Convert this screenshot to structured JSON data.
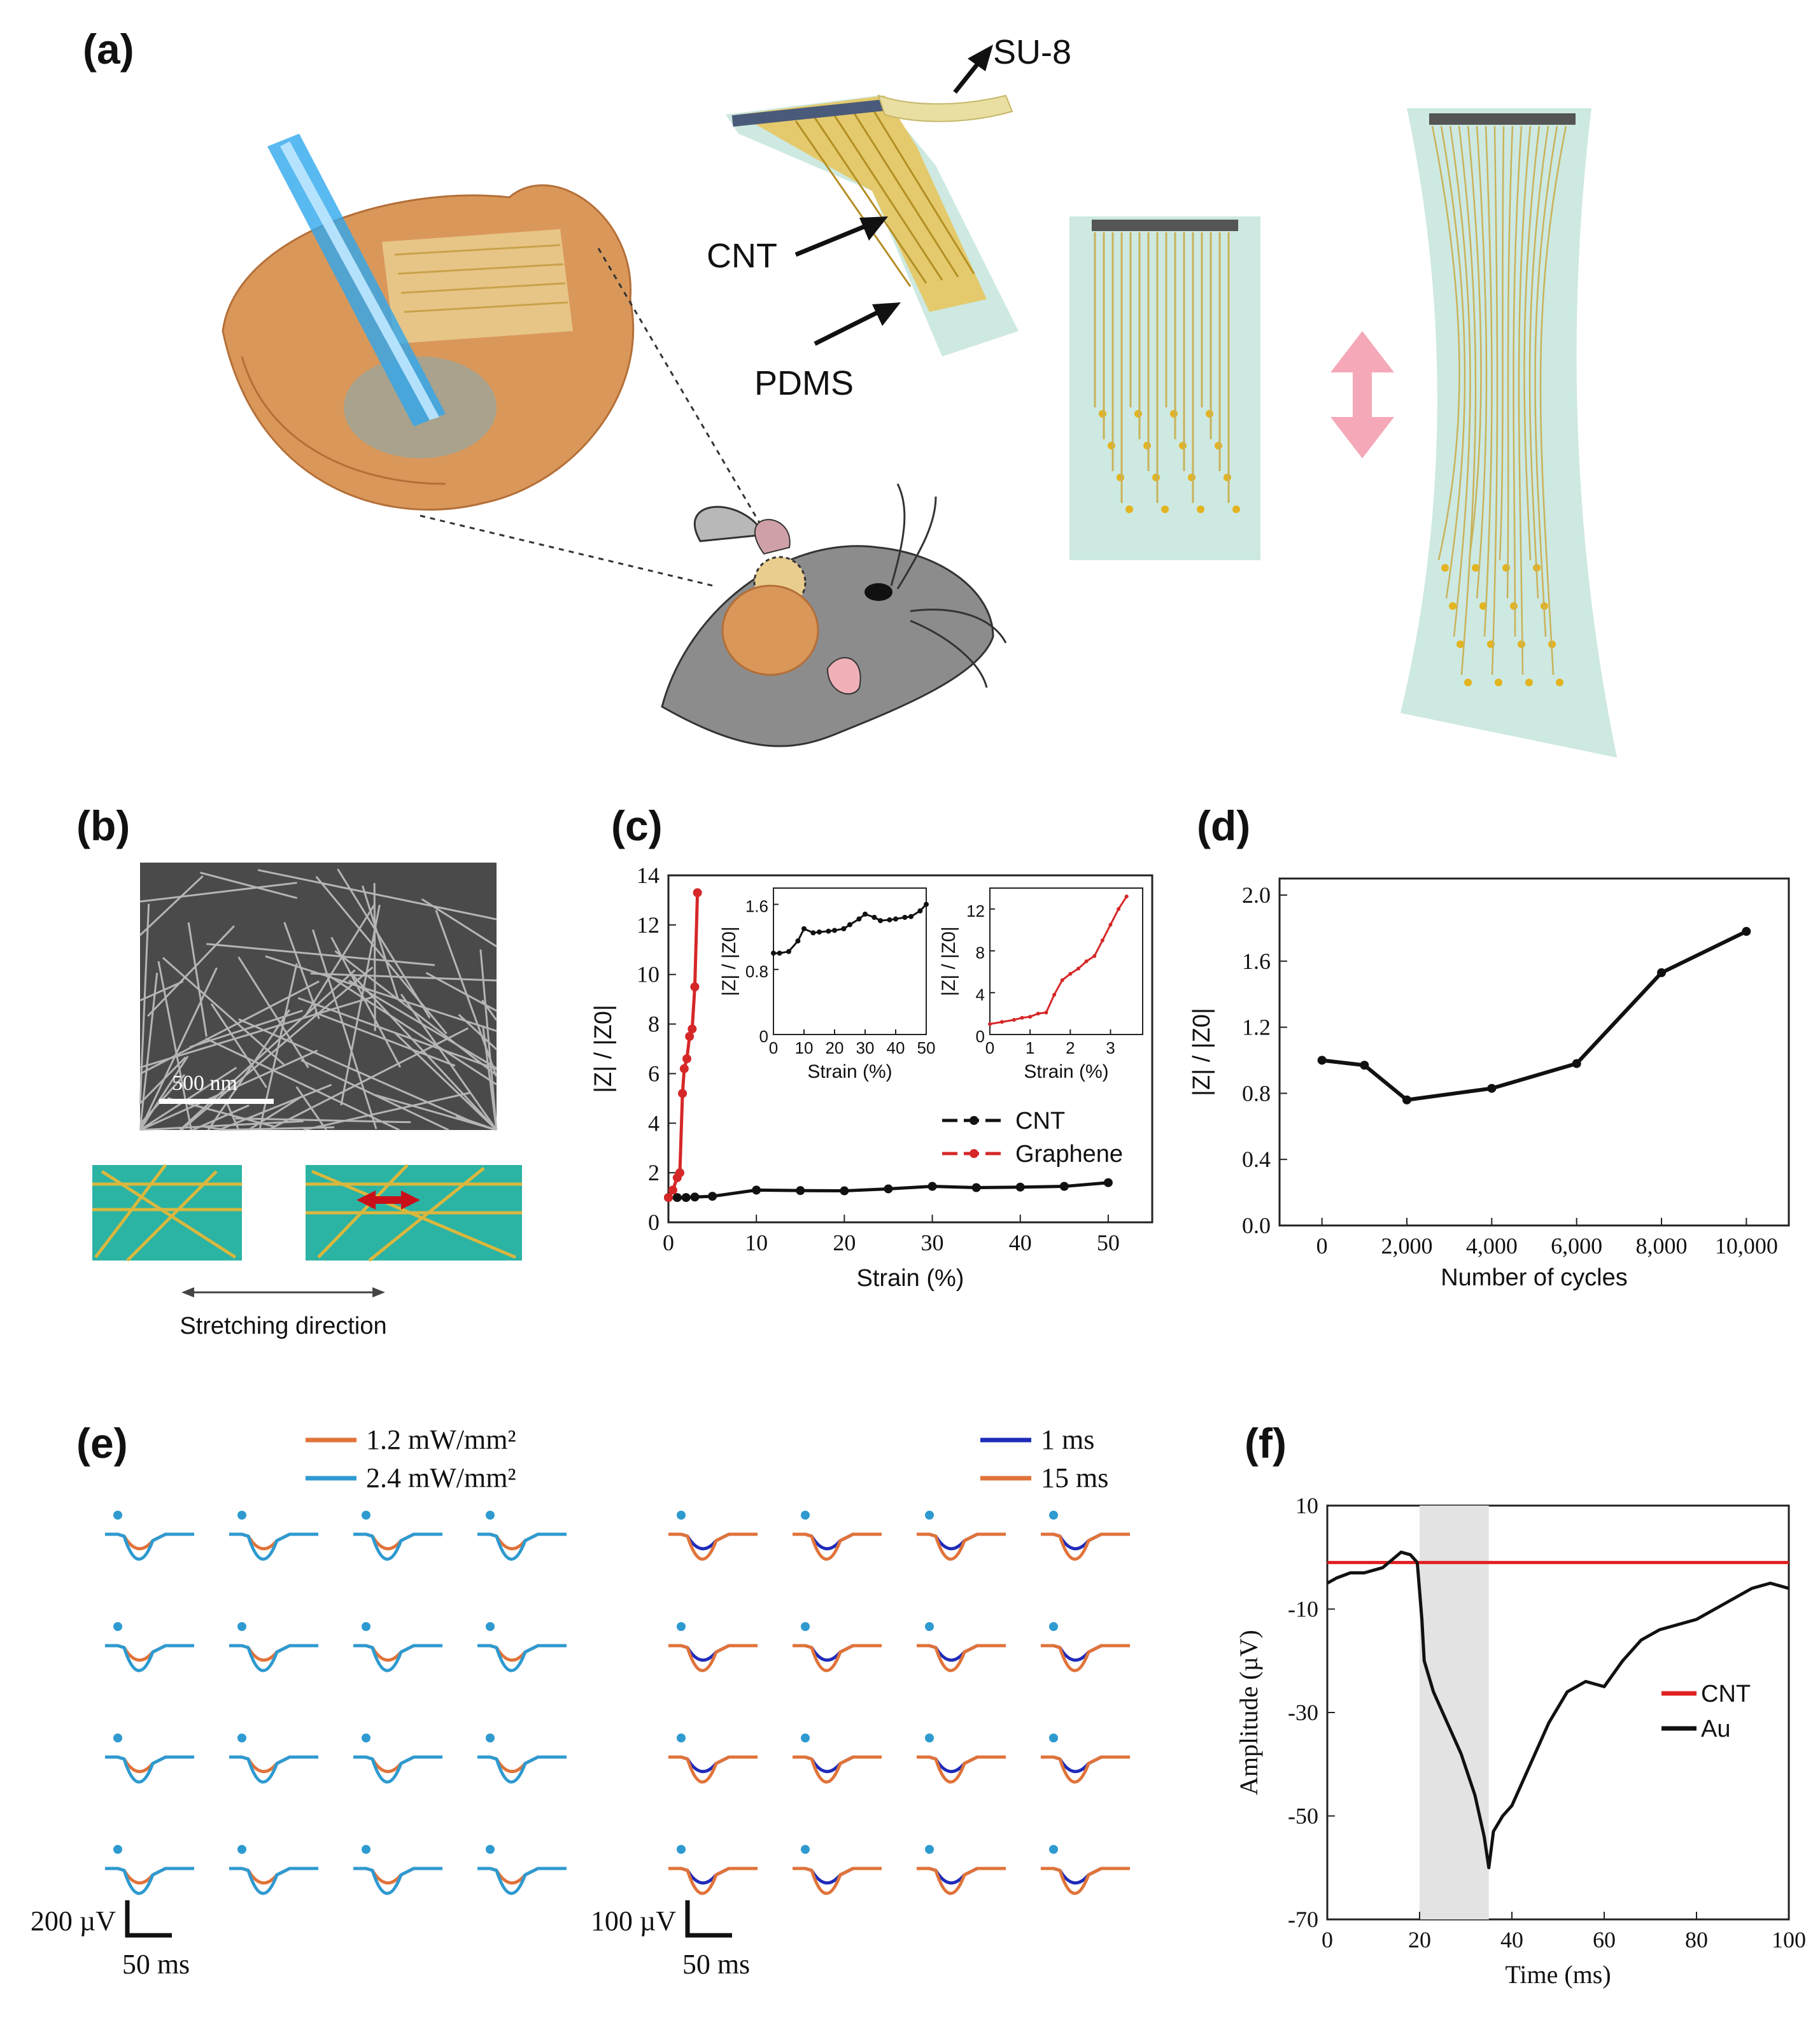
{
  "panels": {
    "a": "(a)",
    "b": "(b)",
    "c": "(c)",
    "d": "(d)",
    "e": "(e)",
    "f": "(f)"
  },
  "panel_a": {
    "label_su8": "SU-8",
    "label_cnt": "CNT",
    "label_pdms": "PDMS",
    "colors": {
      "pdms": "#cde9e1",
      "trace": "#c9b25a",
      "skin": "#d9985a",
      "arrow": "#f5a9b8"
    }
  },
  "panel_b": {
    "scale_bar": "500 nm",
    "caption": "Stretching direction"
  },
  "chart_data": [
    {
      "id": "c-main",
      "type": "line",
      "xlabel": "Strain (%)",
      "ylabel": "|Z| / |Z0|",
      "xlim": [
        0,
        55
      ],
      "ylim": [
        0,
        14
      ],
      "xticks": [
        0,
        10,
        20,
        30,
        40,
        50
      ],
      "yticks": [
        0,
        2,
        4,
        6,
        8,
        10,
        12,
        14
      ],
      "legend": "bottom-right",
      "series": [
        {
          "name": "CNT",
          "color": "#111111",
          "x": [
            0,
            1,
            2,
            3,
            5,
            10,
            15,
            20,
            25,
            30,
            35,
            40,
            45,
            50
          ],
          "y": [
            1.0,
            1.0,
            1.0,
            1.02,
            1.05,
            1.3,
            1.28,
            1.27,
            1.35,
            1.45,
            1.4,
            1.42,
            1.45,
            1.6
          ]
        },
        {
          "name": "Graphene",
          "color": "#d62728",
          "x": [
            0,
            0.5,
            1.0,
            1.3,
            1.6,
            1.8,
            2.1,
            2.4,
            2.7,
            3.0,
            3.3
          ],
          "y": [
            1.0,
            1.3,
            1.8,
            2.0,
            5.2,
            6.2,
            6.6,
            7.5,
            7.8,
            9.5,
            13.3
          ]
        }
      ]
    },
    {
      "id": "c-inset-cnt",
      "type": "line",
      "xlabel": "Strain (%)",
      "ylabel": "|Z| / |Z0|",
      "xlim": [
        0,
        50
      ],
      "ylim": [
        0,
        1.8
      ],
      "xticks": [
        0,
        10,
        20,
        30,
        40,
        50
      ],
      "yticks": [
        0.0,
        0.8,
        1.6
      ],
      "series": [
        {
          "color": "#111111",
          "x": [
            0,
            2,
            5,
            8,
            10,
            13,
            15,
            18,
            20,
            23,
            25,
            28,
            30,
            33,
            35,
            38,
            40,
            43,
            45,
            48,
            50
          ],
          "y": [
            1.0,
            1.0,
            1.02,
            1.15,
            1.3,
            1.25,
            1.26,
            1.27,
            1.28,
            1.3,
            1.35,
            1.42,
            1.48,
            1.44,
            1.4,
            1.41,
            1.42,
            1.44,
            1.45,
            1.52,
            1.6
          ]
        }
      ]
    },
    {
      "id": "c-inset-graphene",
      "type": "line",
      "xlabel": "Strain (%)",
      "ylabel": "|Z| / |Z0|",
      "xlim": [
        0,
        3.8
      ],
      "ylim": [
        0,
        14
      ],
      "xticks": [
        0,
        1,
        2,
        3
      ],
      "yticks": [
        0,
        4,
        8,
        12
      ],
      "series": [
        {
          "color": "#d62728",
          "x": [
            0,
            0.3,
            0.6,
            0.8,
            1.0,
            1.2,
            1.4,
            1.6,
            1.8,
            2.0,
            2.2,
            2.4,
            2.6,
            2.8,
            3.0,
            3.2,
            3.4
          ],
          "y": [
            1.0,
            1.2,
            1.4,
            1.6,
            1.7,
            2.0,
            2.1,
            3.8,
            5.2,
            5.8,
            6.3,
            7.0,
            7.5,
            9.0,
            10.5,
            12.0,
            13.2
          ]
        }
      ]
    },
    {
      "id": "d",
      "type": "line",
      "xlabel": "Number of cycles",
      "ylabel": "|Z| / |Z0|",
      "xlim": [
        -1000,
        11000
      ],
      "ylim": [
        0,
        2.1
      ],
      "xticks": [
        0,
        2000,
        4000,
        6000,
        8000,
        10000
      ],
      "xtick_labels": [
        "0",
        "2,000",
        "4,000",
        "6,000",
        "8,000",
        "10,000"
      ],
      "yticks": [
        0.0,
        0.4,
        0.8,
        1.2,
        1.6,
        2.0
      ],
      "ytick_labels": [
        "0.0",
        "0.4",
        "0.8",
        "1.2",
        "1.6",
        "2.0"
      ],
      "series": [
        {
          "color": "#111111",
          "x": [
            0,
            1000,
            2000,
            4000,
            6000,
            8000,
            10000
          ],
          "y": [
            1.0,
            0.97,
            0.76,
            0.83,
            0.98,
            1.53,
            1.78
          ]
        }
      ]
    },
    {
      "id": "e-left",
      "type": "line",
      "grid": [
        4,
        4
      ],
      "scale_bar": {
        "y": "200 µV",
        "x": "50 ms"
      },
      "legend": "top",
      "series": [
        {
          "name": "1.2 mW/mm²",
          "color": "#e0733a"
        },
        {
          "name": "2.4 mW/mm²",
          "color": "#2e9ad0"
        }
      ],
      "stimulus_marker_color": "#2e9ad0"
    },
    {
      "id": "e-right",
      "type": "line",
      "grid": [
        4,
        4
      ],
      "scale_bar": {
        "y": "100 µV",
        "x": "50 ms"
      },
      "legend": "top",
      "series": [
        {
          "name": "1 ms",
          "color": "#1f2bb8"
        },
        {
          "name": "15 ms",
          "color": "#e0733a"
        }
      ],
      "stimulus_marker_color": "#2e9ad0"
    },
    {
      "id": "f",
      "type": "line",
      "xlabel": "Time (ms)",
      "ylabel": "Amplitude (µV)",
      "xlim": [
        0,
        100
      ],
      "ylim": [
        -70,
        10
      ],
      "xticks": [
        0,
        20,
        40,
        60,
        80,
        100
      ],
      "yticks": [
        10,
        -10,
        -30,
        -50,
        -70
      ],
      "shaded_region": [
        20,
        35
      ],
      "legend": "right",
      "series": [
        {
          "name": "CNT",
          "color": "#e02020",
          "x": [
            0,
            10,
            20,
            30,
            40,
            50,
            60,
            70,
            80,
            90,
            100
          ],
          "y": [
            -1,
            -1,
            -1,
            -1,
            -1,
            -1,
            -1,
            -1,
            -1,
            -1,
            -1
          ]
        },
        {
          "name": "Au",
          "color": "#111111",
          "x": [
            0,
            2,
            5,
            8,
            12,
            16,
            18,
            19.5,
            20.5,
            21,
            23,
            26,
            29,
            32,
            34,
            35,
            36,
            38,
            40,
            44,
            48,
            52,
            56,
            60,
            64,
            68,
            72,
            76,
            80,
            84,
            88,
            92,
            96,
            100
          ],
          "y": [
            -5,
            -4,
            -3,
            -3,
            -2,
            1,
            0.5,
            -1,
            -12,
            -20,
            -26,
            -32,
            -38,
            -46,
            -54,
            -60,
            -53,
            -50,
            -48,
            -40,
            -32,
            -26,
            -24,
            -25,
            -20,
            -16,
            -14,
            -13,
            -12,
            -10,
            -8,
            -6,
            -5,
            -6
          ]
        }
      ]
    }
  ]
}
